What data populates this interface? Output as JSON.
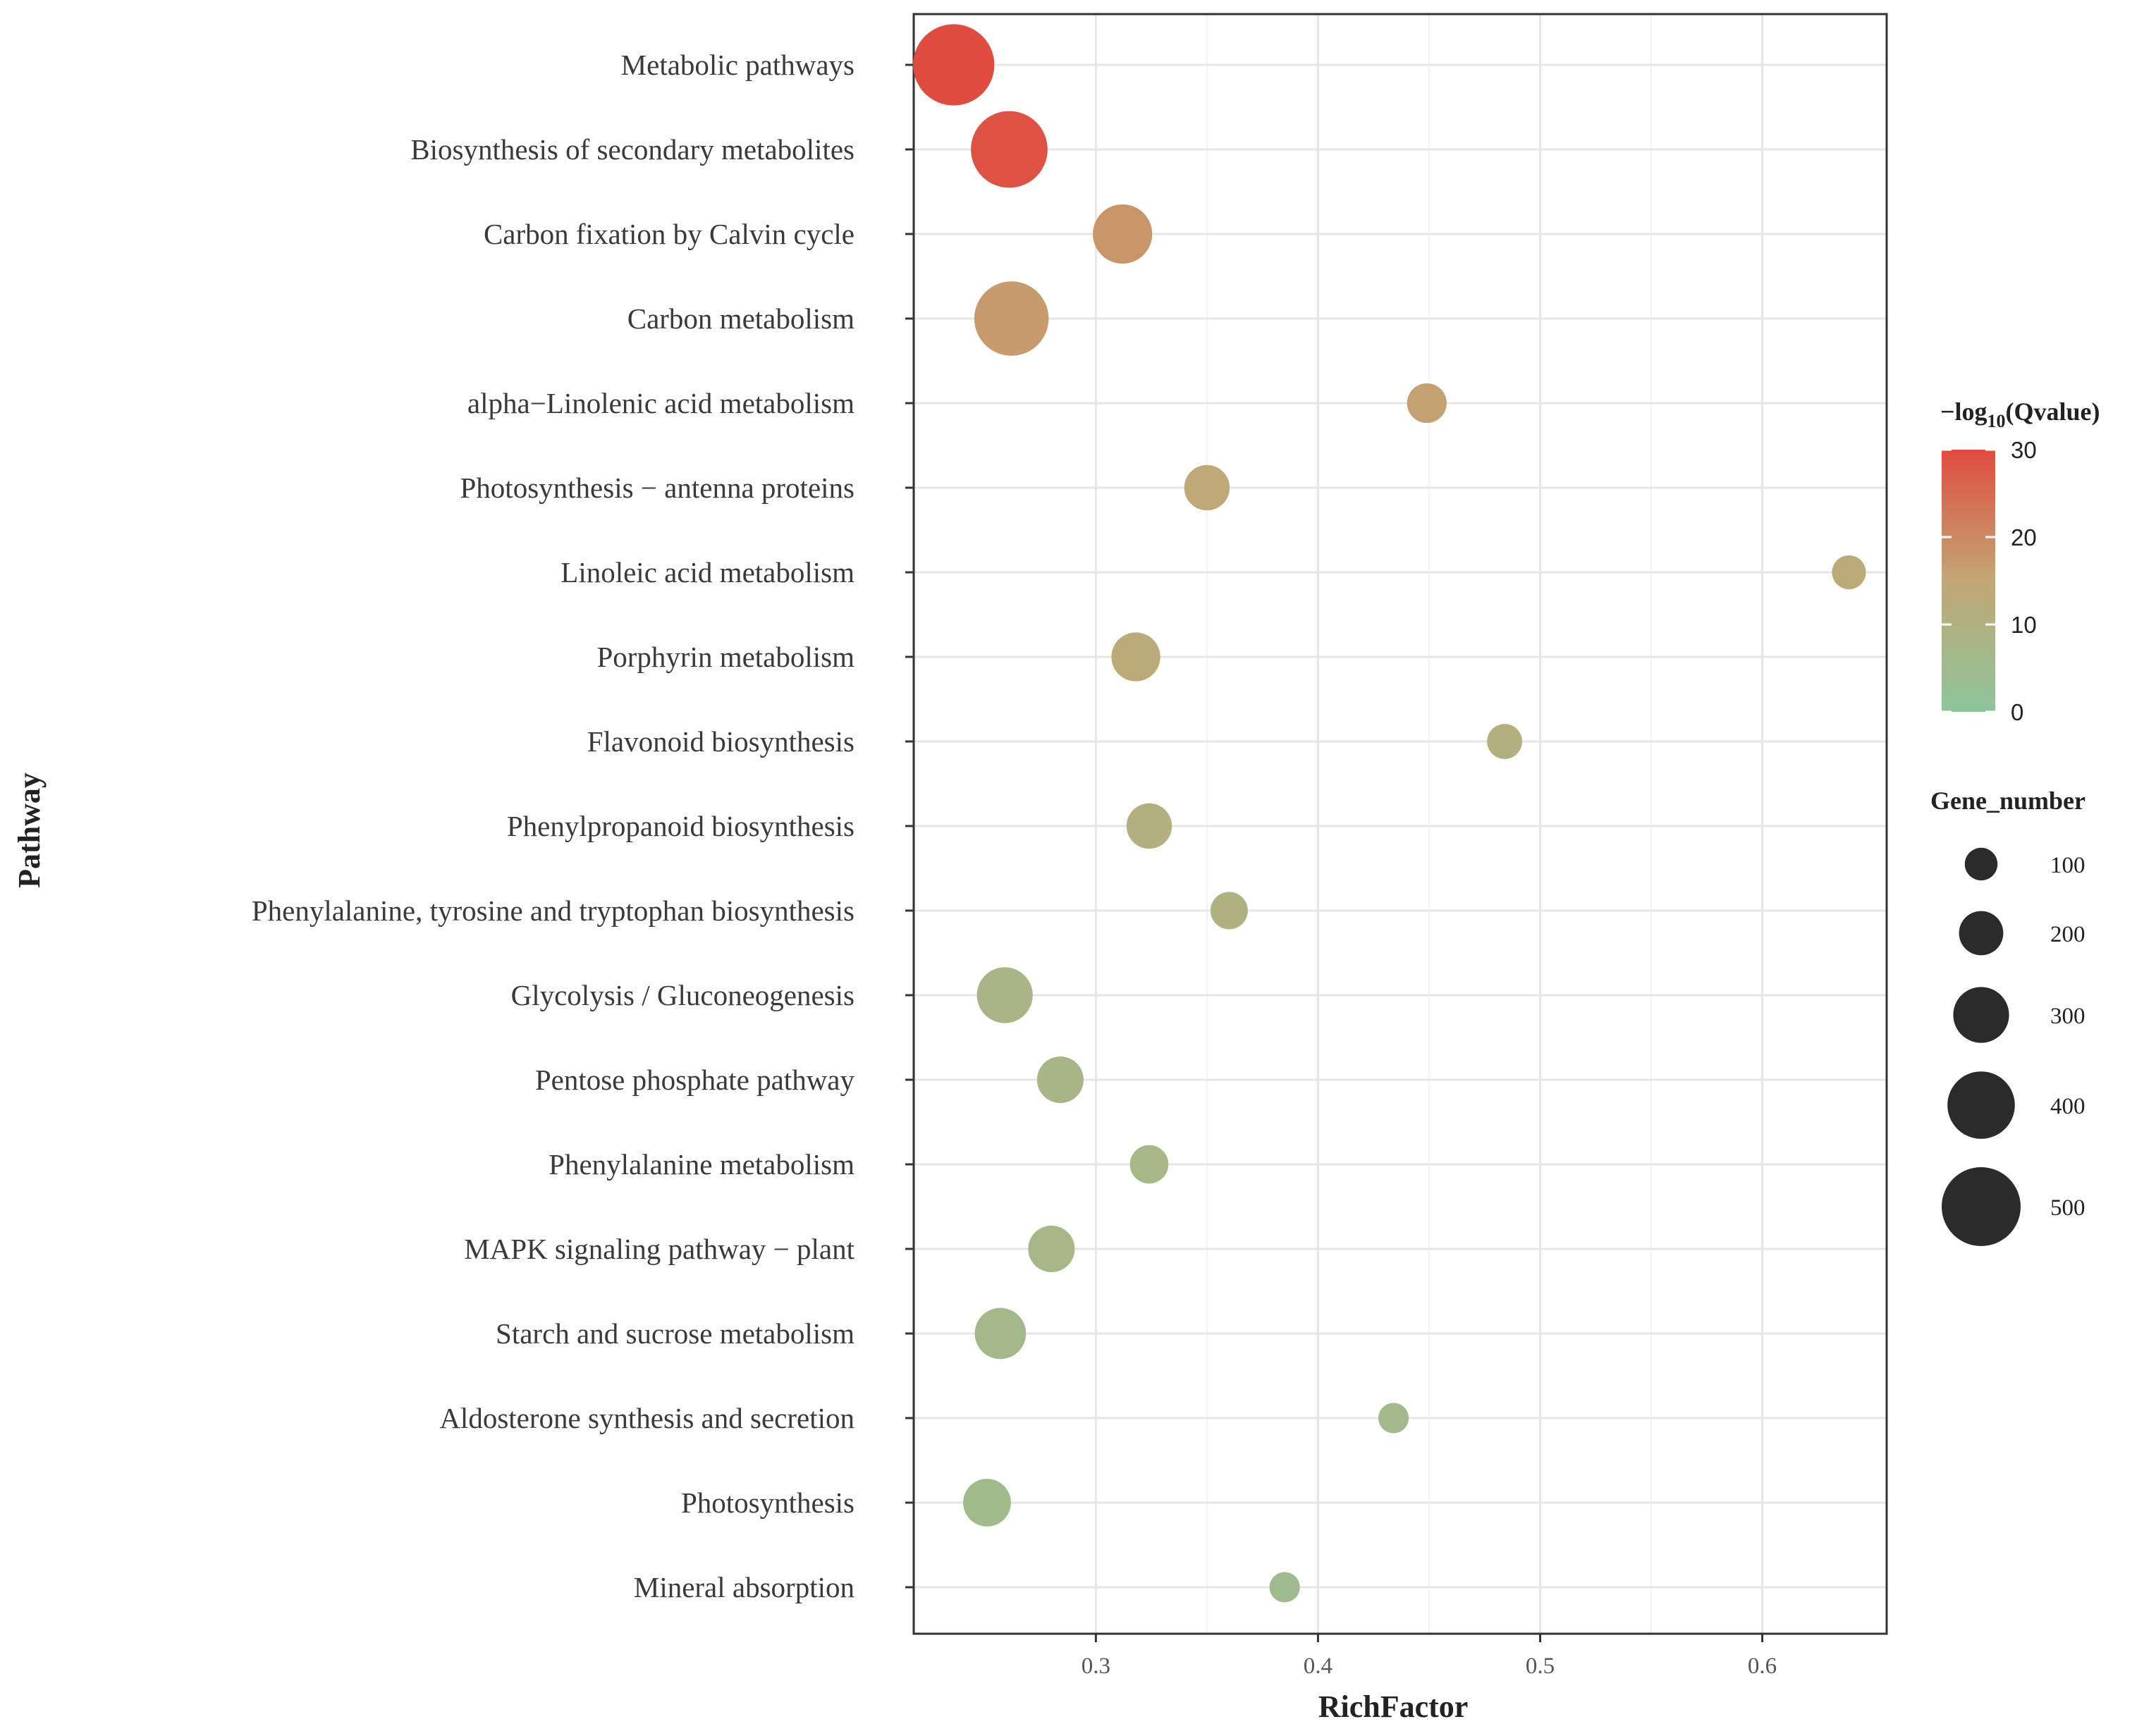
{
  "chart_data": {
    "type": "scatter",
    "xlabel": "RichFactor",
    "ylabel": "Pathway",
    "xlim": [
      0.218,
      0.656
    ],
    "xticks": [
      0.3,
      0.4,
      0.5,
      0.6
    ],
    "xtick_labels": [
      "0.3",
      "0.4",
      "0.5",
      "0.6"
    ],
    "grid": true,
    "points": [
      {
        "pathway": "Metabolic pathways",
        "rich_factor": 0.236,
        "qvalue": 30,
        "gene_number": 520
      },
      {
        "pathway": "Biosynthesis of secondary metabolites",
        "rich_factor": 0.261,
        "qvalue": 29,
        "gene_number": 480
      },
      {
        "pathway": "Carbon fixation by Calvin cycle",
        "rich_factor": 0.312,
        "qvalue": 18,
        "gene_number": 330
      },
      {
        "pathway": "Carbon metabolism",
        "rich_factor": 0.262,
        "qvalue": 17,
        "gene_number": 460
      },
      {
        "pathway": "alpha−Linolenic acid metabolism",
        "rich_factor": 0.449,
        "qvalue": 16,
        "gene_number": 160
      },
      {
        "pathway": "Photosynthesis − antenna proteins",
        "rich_factor": 0.35,
        "qvalue": 14,
        "gene_number": 210
      },
      {
        "pathway": "Linoleic acid metabolism",
        "rich_factor": 0.639,
        "qvalue": 13,
        "gene_number": 110
      },
      {
        "pathway": "Porphyrin metabolism",
        "rich_factor": 0.318,
        "qvalue": 13,
        "gene_number": 240
      },
      {
        "pathway": "Flavonoid biosynthesis",
        "rich_factor": 0.484,
        "qvalue": 11,
        "gene_number": 120
      },
      {
        "pathway": "Phenylpropanoid biosynthesis",
        "rich_factor": 0.324,
        "qvalue": 11,
        "gene_number": 210
      },
      {
        "pathway": "Phenylalanine, tyrosine and tryptophan biosynthesis",
        "rich_factor": 0.36,
        "qvalue": 10,
        "gene_number": 140
      },
      {
        "pathway": "Glycolysis / Gluconeogenesis",
        "rich_factor": 0.259,
        "qvalue": 8,
        "gene_number": 300
      },
      {
        "pathway": "Pentose phosphate pathway",
        "rich_factor": 0.284,
        "qvalue": 7.5,
        "gene_number": 220
      },
      {
        "pathway": "Phenylalanine metabolism",
        "rich_factor": 0.324,
        "qvalue": 7,
        "gene_number": 150
      },
      {
        "pathway": "MAPK signaling pathway − plant",
        "rich_factor": 0.28,
        "qvalue": 7,
        "gene_number": 220
      },
      {
        "pathway": "Starch and sucrose metabolism",
        "rich_factor": 0.257,
        "qvalue": 6.5,
        "gene_number": 260
      },
      {
        "pathway": "Aldosterone synthesis and secretion",
        "rich_factor": 0.434,
        "qvalue": 6,
        "gene_number": 80
      },
      {
        "pathway": "Photosynthesis",
        "rich_factor": 0.251,
        "qvalue": 5.5,
        "gene_number": 230
      },
      {
        "pathway": "Mineral absorption",
        "rich_factor": 0.385,
        "qvalue": 5,
        "gene_number": 80
      }
    ],
    "color_legend": {
      "title_prefix": "−log",
      "title_sub": "10",
      "title_suffix": "(Qvalue)",
      "range": [
        0,
        30
      ],
      "ticks": [
        0,
        10,
        20,
        30
      ],
      "tick_labels": [
        "0",
        "10",
        "20",
        "30"
      ],
      "low_color": "#8dc59a",
      "mid_color": "#c2a774",
      "high_color": "#e04c3f"
    },
    "size_legend": {
      "title": "Gene_number",
      "values": [
        100,
        200,
        300,
        400,
        500
      ],
      "labels": [
        "100",
        "200",
        "300",
        "400",
        "500"
      ],
      "color": "#2b2b2b"
    }
  }
}
